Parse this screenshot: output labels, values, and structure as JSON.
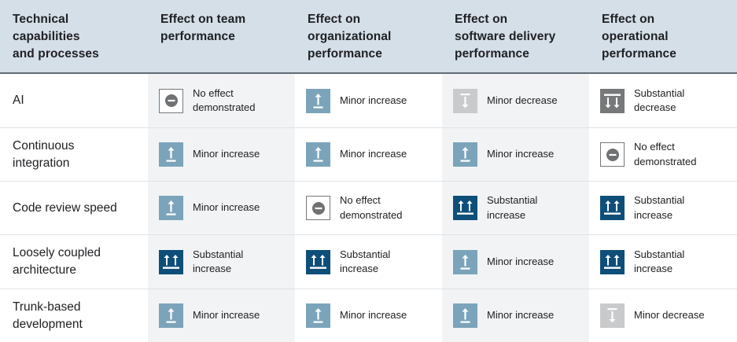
{
  "headers": [
    "Technical capabilities and processes",
    "Effect on team performance",
    "Effect on organizational performance",
    "Effect on software delivery performance",
    "Effect on operational performance"
  ],
  "header_lines": [
    [
      "Technical",
      "capabilities",
      "and processes"
    ],
    [
      "Effect on team",
      "performance"
    ],
    [
      "Effect on",
      "organizational",
      "performance"
    ],
    [
      "Effect on",
      "software delivery",
      "performance"
    ],
    [
      "Effect on",
      "operational",
      "performance"
    ]
  ],
  "legend_icons": {
    "minor-increase": "minor-increase-icon",
    "substantial-increase": "substantial-increase-icon",
    "minor-decrease": "minor-decrease-icon",
    "substantial-decrease": "substantial-decrease-icon",
    "no-effect": "no-effect-icon"
  },
  "colors": {
    "header_bg": "#d5dfe8",
    "minor_increase": "#7ba4ba",
    "substantial_increase": "#0e4f79",
    "minor_decrease": "#c9cacb",
    "substantial_decrease": "#76787a"
  },
  "rows": [
    {
      "label": [
        "AI"
      ],
      "effects": [
        {
          "type": "no-effect",
          "text": [
            "No effect",
            "demonstrated"
          ]
        },
        {
          "type": "minor-increase",
          "text": [
            "Minor increase"
          ]
        },
        {
          "type": "minor-decrease",
          "text": [
            "Minor decrease"
          ]
        },
        {
          "type": "substantial-decrease",
          "text": [
            "Substantial",
            "decrease"
          ]
        }
      ]
    },
    {
      "label": [
        "Continuous",
        "integration"
      ],
      "effects": [
        {
          "type": "minor-increase",
          "text": [
            "Minor increase"
          ]
        },
        {
          "type": "minor-increase",
          "text": [
            "Minor increase"
          ]
        },
        {
          "type": "minor-increase",
          "text": [
            "Minor increase"
          ]
        },
        {
          "type": "no-effect",
          "text": [
            "No effect",
            "demonstrated"
          ]
        }
      ]
    },
    {
      "label": [
        "Code review speed"
      ],
      "effects": [
        {
          "type": "minor-increase",
          "text": [
            "Minor increase"
          ]
        },
        {
          "type": "no-effect",
          "text": [
            "No effect",
            "demonstrated"
          ]
        },
        {
          "type": "substantial-increase",
          "text": [
            "Substantial",
            "increase"
          ]
        },
        {
          "type": "substantial-increase",
          "text": [
            "Substantial",
            "increase"
          ]
        }
      ]
    },
    {
      "label": [
        "Loosely coupled",
        "architecture"
      ],
      "effects": [
        {
          "type": "substantial-increase",
          "text": [
            "Substantial",
            "increase"
          ]
        },
        {
          "type": "substantial-increase",
          "text": [
            "Substantial",
            "increase"
          ]
        },
        {
          "type": "minor-increase",
          "text": [
            "Minor increase"
          ]
        },
        {
          "type": "substantial-increase",
          "text": [
            "Substantial",
            "increase"
          ]
        }
      ]
    },
    {
      "label": [
        "Trunk-based",
        "development"
      ],
      "effects": [
        {
          "type": "minor-increase",
          "text": [
            "Minor increase"
          ]
        },
        {
          "type": "minor-increase",
          "text": [
            "Minor increase"
          ]
        },
        {
          "type": "minor-increase",
          "text": [
            "Minor increase"
          ]
        },
        {
          "type": "minor-decrease",
          "text": [
            "Minor decrease"
          ]
        }
      ]
    }
  ]
}
